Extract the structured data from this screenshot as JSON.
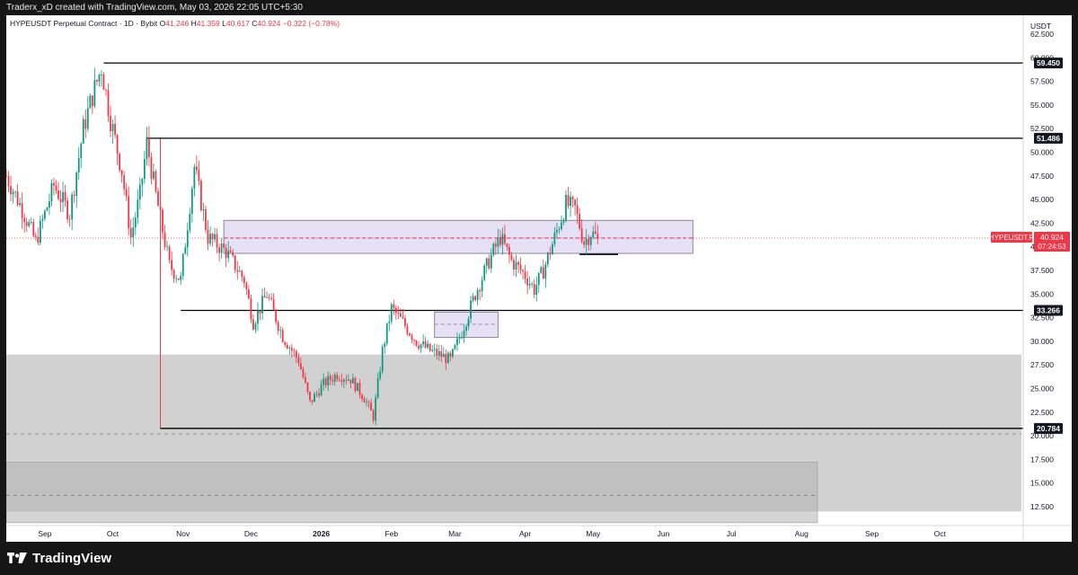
{
  "header": {
    "credit": "Traderx_xD created with TradingView.com, May 03, 2026 22:05 UTC+5:30"
  },
  "legend": {
    "symbol": "HYPEUSDT Perpetual Contract · 1D · Bybit",
    "o_label": "O",
    "o": "41.246",
    "h_label": "H",
    "h": "41.359",
    "l_label": "L",
    "l": "40.617",
    "c_label": "C",
    "c": "40.924",
    "change": "−0.322 (−0.78%)"
  },
  "footer": {
    "brand": "TradingView",
    "logo_icon": "tradingview-logo-icon"
  },
  "colors": {
    "up": "#089981",
    "down": "#f23645",
    "zone": "#d1d1d1",
    "zone_dark": "#b2b2b2",
    "box": "#e1dbf1",
    "box_border": "#6f6f7f",
    "label_bg": "#131722",
    "price_red": "#f23645"
  },
  "chart_data": {
    "type": "candlestick",
    "y_unit": "USDT",
    "ylim": [
      10.5,
      64.5
    ],
    "y_ticks": [
      "62.500",
      "60.000",
      "57.500",
      "55.000",
      "52.500",
      "50.000",
      "47.500",
      "45.000",
      "42.500",
      "40.000",
      "37.500",
      "35.000",
      "32.500",
      "30.000",
      "27.500",
      "25.000",
      "22.500",
      "20.000",
      "17.500",
      "15.000",
      "12.500"
    ],
    "x_ticks": [
      {
        "date": "2025-09-01",
        "label": "Sep"
      },
      {
        "date": "2025-10-01",
        "label": "Oct"
      },
      {
        "date": "2025-11-01",
        "label": "Nov"
      },
      {
        "date": "2025-12-01",
        "label": "Dec"
      },
      {
        "date": "2026-01-01",
        "label": "2026",
        "bold": true
      },
      {
        "date": "2026-02-01",
        "label": "Feb"
      },
      {
        "date": "2026-03-01",
        "label": "Mar"
      },
      {
        "date": "2026-04-01",
        "label": "Apr"
      },
      {
        "date": "2026-05-01",
        "label": "May"
      },
      {
        "date": "2026-06-01",
        "label": "Jun"
      },
      {
        "date": "2026-07-01",
        "label": "Jul"
      },
      {
        "date": "2026-08-01",
        "label": "Aug"
      },
      {
        "date": "2026-09-01",
        "label": "Sep"
      },
      {
        "date": "2026-10-01",
        "label": "Oct"
      }
    ],
    "x_range": [
      "2025-08-15",
      "2026-11-06"
    ],
    "price_path": [
      [
        "2025-08-15",
        47.5
      ],
      [
        "2025-08-22",
        44.0
      ],
      [
        "2025-08-28",
        40.5
      ],
      [
        "2025-09-05",
        46.5
      ],
      [
        "2025-09-12",
        43.5
      ],
      [
        "2025-09-18",
        52.5
      ],
      [
        "2025-09-22",
        56.0
      ],
      [
        "2025-09-26",
        59.0
      ],
      [
        "2025-09-30",
        53.5
      ],
      [
        "2025-10-05",
        48.0
      ],
      [
        "2025-10-09",
        41.0
      ],
      [
        "2025-10-13",
        45.5
      ],
      [
        "2025-10-16",
        51.0
      ],
      [
        "2025-10-20",
        45.5
      ],
      [
        "2025-10-26",
        38.0
      ],
      [
        "2025-10-31",
        36.5
      ],
      [
        "2025-11-06",
        48.5
      ],
      [
        "2025-11-12",
        41.0
      ],
      [
        "2025-11-20",
        39.5
      ],
      [
        "2025-11-28",
        36.5
      ],
      [
        "2025-12-02",
        32.0
      ],
      [
        "2025-12-08",
        35.0
      ],
      [
        "2025-12-15",
        30.5
      ],
      [
        "2025-12-22",
        28.0
      ],
      [
        "2025-12-27",
        23.5
      ],
      [
        "2026-01-02",
        25.5
      ],
      [
        "2026-01-08",
        26.5
      ],
      [
        "2026-01-14",
        26.0
      ],
      [
        "2026-01-20",
        24.0
      ],
      [
        "2026-01-24",
        22.0
      ],
      [
        "2026-01-28",
        29.0
      ],
      [
        "2026-02-01",
        33.5
      ],
      [
        "2026-02-06",
        32.0
      ],
      [
        "2026-02-12",
        30.0
      ],
      [
        "2026-02-18",
        29.0
      ],
      [
        "2026-02-23",
        28.5
      ],
      [
        "2026-02-27",
        28.0
      ],
      [
        "2026-03-04",
        31.0
      ],
      [
        "2026-03-10",
        35.0
      ],
      [
        "2026-03-16",
        38.5
      ],
      [
        "2026-03-21",
        41.0
      ],
      [
        "2026-03-26",
        38.5
      ],
      [
        "2026-04-01",
        37.0
      ],
      [
        "2026-04-05",
        35.5
      ],
      [
        "2026-04-09",
        37.5
      ],
      [
        "2026-04-14",
        41.0
      ],
      [
        "2026-04-19",
        44.5
      ],
      [
        "2026-04-23",
        44.0
      ],
      [
        "2026-04-27",
        40.5
      ],
      [
        "2026-04-30",
        41.5
      ],
      [
        "2026-05-03",
        40.924
      ]
    ],
    "horizontal_levels": [
      {
        "price": 59.45,
        "label": "59.450",
        "from": "2025-09-27"
      },
      {
        "price": 51.486,
        "label": "51.486",
        "from": "2025-10-16"
      },
      {
        "price": 33.266,
        "label": "33.266",
        "from": "2025-10-31"
      },
      {
        "price": 20.784,
        "label": "20.784",
        "from": "2025-10-22"
      }
    ],
    "short_levels": [
      {
        "price": 39.2,
        "from": "2026-04-25",
        "to": "2026-05-12"
      }
    ],
    "dashed_levels": [
      {
        "price": 20.2
      },
      {
        "price": 13.7,
        "from": "2025-08-15",
        "to": "2026-08-08"
      }
    ],
    "vertical_lines": [
      {
        "date": "2025-10-22",
        "from_price": 20.784,
        "to_price": 51.486,
        "color": "#f23645"
      }
    ],
    "zones": [
      {
        "kind": "gray",
        "from": "2025-08-15",
        "to": "2026-11-06",
        "top": 28.6,
        "bottom": 12.0
      },
      {
        "kind": "gray",
        "from": "2025-08-15",
        "to": "2026-08-08",
        "top": 17.2,
        "bottom": 10.8
      }
    ],
    "boxes": [
      {
        "from": "2025-11-19",
        "to": "2026-06-14",
        "top": 42.8,
        "bottom": 39.3,
        "mid": 40.924
      },
      {
        "from": "2026-02-20",
        "to": "2026-03-20",
        "top": 33.1,
        "bottom": 30.4,
        "mid": 31.8
      }
    ],
    "last_price": {
      "value": "40.924",
      "symbol": "HYPEUSDT.P",
      "countdown": "07:24:53"
    }
  }
}
